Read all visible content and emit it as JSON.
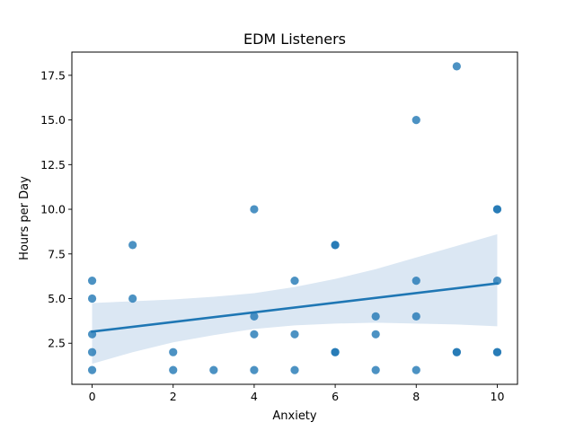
{
  "chart_data": {
    "type": "scatter",
    "title": "EDM Listeners",
    "xlabel": "Anxiety",
    "ylabel": "Hours per Day",
    "xlim": [
      -0.5,
      10.5
    ],
    "ylim": [
      0.2,
      18.8
    ],
    "x_ticks": [
      0,
      2,
      4,
      6,
      8,
      10
    ],
    "x_tick_labels": [
      "0",
      "2",
      "4",
      "6",
      "8",
      "10"
    ],
    "y_ticks": [
      2.5,
      5.0,
      7.5,
      10.0,
      12.5,
      15.0,
      17.5
    ],
    "y_tick_labels": [
      "2.5",
      "5.0",
      "7.5",
      "10.0",
      "12.5",
      "15.0",
      "17.5"
    ],
    "grid": false,
    "point_color": "#1f77b4",
    "line_color": "#1f77b4",
    "band_color": "#dbe7f3",
    "points": [
      [
        0,
        6
      ],
      [
        0,
        5
      ],
      [
        0,
        3
      ],
      [
        0,
        2
      ],
      [
        0,
        1
      ],
      [
        1,
        8
      ],
      [
        1,
        5
      ],
      [
        2,
        2
      ],
      [
        2,
        1
      ],
      [
        3,
        1
      ],
      [
        4,
        10
      ],
      [
        4,
        4
      ],
      [
        4,
        3
      ],
      [
        4,
        1
      ],
      [
        5,
        6
      ],
      [
        5,
        3
      ],
      [
        5,
        1
      ],
      [
        6,
        8
      ],
      [
        6,
        8
      ],
      [
        6,
        2
      ],
      [
        6,
        2
      ],
      [
        7,
        4
      ],
      [
        7,
        3
      ],
      [
        7,
        1
      ],
      [
        8,
        15
      ],
      [
        8,
        6
      ],
      [
        8,
        4
      ],
      [
        8,
        1
      ],
      [
        9,
        18
      ],
      [
        9,
        2
      ],
      [
        9,
        2
      ],
      [
        10,
        10
      ],
      [
        10,
        10
      ],
      [
        10,
        6
      ],
      [
        10,
        2
      ],
      [
        10,
        2
      ]
    ],
    "regression": {
      "x": [
        0,
        10
      ],
      "y": [
        3.15,
        5.85
      ]
    },
    "confidence_band": {
      "x": [
        0,
        1,
        2,
        3,
        4,
        5,
        6,
        7,
        8,
        9,
        10
      ],
      "lower": [
        1.35,
        2.0,
        2.55,
        2.95,
        3.3,
        3.5,
        3.6,
        3.65,
        3.6,
        3.55,
        3.45
      ],
      "upper": [
        4.75,
        4.85,
        4.95,
        5.1,
        5.3,
        5.65,
        6.1,
        6.65,
        7.3,
        7.95,
        8.6
      ]
    }
  }
}
